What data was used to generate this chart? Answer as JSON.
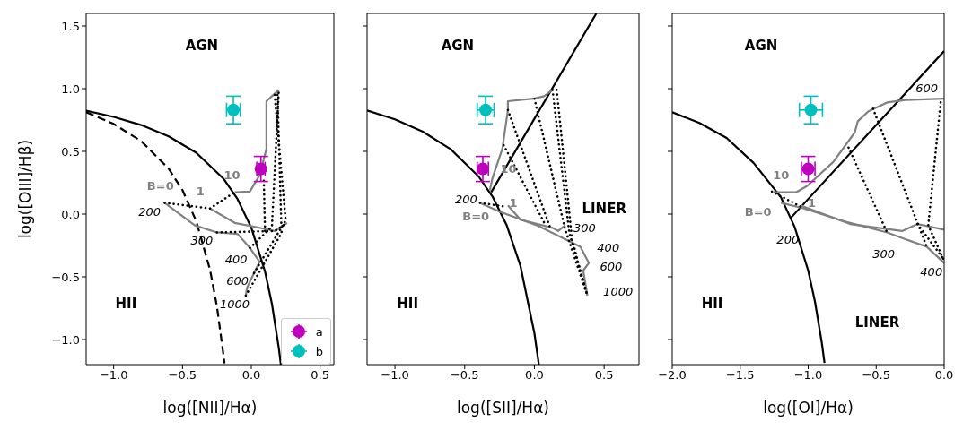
{
  "chart_data": [
    {
      "type": "line",
      "xlabel": "log([NII]/Hα)",
      "ylabel": "log([OIII]/Hβ)",
      "xlim": [
        -1.2,
        0.6
      ],
      "ylim": [
        -1.2,
        1.6
      ],
      "xticks": [
        {
          "value": -1,
          "label": "−1.0"
        },
        {
          "value": -0.5,
          "label": "−0.5"
        },
        {
          "value": 0,
          "label": "0.0"
        },
        {
          "value": 0.5,
          "label": "0.5"
        }
      ],
      "yticks": [
        {
          "value": -1,
          "label": "−1.0"
        },
        {
          "value": -0.5,
          "label": "−0.5"
        },
        {
          "value": 0,
          "label": "0.0"
        },
        {
          "value": 0.5,
          "label": "0.5"
        },
        {
          "value": 1,
          "label": "1.0"
        },
        {
          "value": 1.5,
          "label": "1.5"
        }
      ],
      "legend": "bottom right",
      "series": [
        {
          "color": "#000000",
          "line_style": "solid",
          "x": [
            -1.2,
            -1.0,
            -0.8,
            -0.6,
            -0.4,
            -0.2,
            -0.1,
            0.0,
            0.1,
            0.15,
            0.2,
            0.215
          ],
          "values": [
            0.825,
            0.775,
            0.71,
            0.62,
            0.489,
            0.28,
            0.12,
            -0.108,
            -0.459,
            -0.716,
            -1.069,
            -1.2
          ]
        },
        {
          "color": "#000000",
          "line_style": "dashed",
          "x": [
            -1.2,
            -1.0,
            -0.8,
            -0.6,
            -0.5,
            -0.4,
            -0.3,
            -0.25,
            -0.2,
            -0.195
          ],
          "values": [
            0.812,
            0.719,
            0.582,
            0.362,
            0.191,
            -0.056,
            -0.443,
            -0.733,
            -1.14,
            -1.19
          ]
        },
        {
          "color": "#808080",
          "line_style": "solid",
          "x": [
            -0.63,
            -0.41,
            -0.25,
            -0.1,
            -0.01,
            0.06,
            0.02,
            -0.03,
            -0.04
          ],
          "values": [
            0.09,
            -0.09,
            -0.146,
            -0.158,
            -0.27,
            -0.38,
            -0.47,
            -0.585,
            -0.65
          ]
        },
        {
          "color": "#808080",
          "line_style": "solid",
          "x": [
            -0.3,
            -0.12,
            0.02,
            0.17,
            0.26
          ],
          "values": [
            0.045,
            -0.07,
            -0.1,
            -0.135,
            -0.07
          ]
        },
        {
          "color": "#808080",
          "line_style": "solid",
          "x": [
            -0.12,
            -0.01,
            0.06,
            0.11,
            0.11,
            0.2
          ],
          "values": [
            0.175,
            0.18,
            0.31,
            0.52,
            0.9,
            0.99
          ]
        },
        {
          "color": "#000000",
          "line_style": "dotted",
          "x": [
            -0.63,
            -0.3,
            -0.12
          ],
          "values": [
            0.09,
            0.045,
            0.175
          ]
        },
        {
          "color": "#000000",
          "line_style": "dotted",
          "x": [
            -0.25,
            0.17,
            0.26
          ],
          "values": [
            -0.146,
            -0.135,
            -0.07
          ]
        },
        {
          "color": "#000000",
          "line_style": "dotted",
          "x": [
            0.1,
            0.09
          ],
          "values": [
            -0.135,
            0.3
          ]
        },
        {
          "color": "#000000",
          "line_style": "dotted",
          "x": [
            -0.01,
            0.15,
            0.2
          ],
          "values": [
            -0.27,
            -0.1,
            0.99
          ]
        },
        {
          "color": "#000000",
          "line_style": "dotted",
          "x": [
            0.02,
            0.25,
            0.17
          ],
          "values": [
            -0.47,
            -0.05,
            0.95
          ]
        },
        {
          "color": "#000000",
          "line_style": "dotted",
          "x": [
            -0.04,
            0.22,
            0.19
          ],
          "values": [
            -0.65,
            -0.15,
            0.97
          ]
        },
        {
          "type": "scatter",
          "name": "a",
          "color": "#bf00bf",
          "marker": "circle",
          "x": [
            0.07
          ],
          "values": [
            0.36
          ],
          "errors": [
            0.1
          ],
          "xerrors": [
            0.03
          ]
        },
        {
          "type": "scatter",
          "name": "b",
          "color": "#00bfbf",
          "marker": "circle",
          "x": [
            -0.13
          ],
          "values": [
            0.83
          ],
          "errors": [
            0.11
          ],
          "xerrors": [
            0.05
          ]
        }
      ],
      "annotations": [
        "AGN",
        "HII",
        "B=0",
        "1",
        "10",
        "200",
        "300",
        "400",
        "600",
        "1000"
      ]
    },
    {
      "type": "line",
      "xlabel": "log([SII]/Hα)",
      "xlim": [
        -1.2,
        0.75
      ],
      "ylim": [
        -1.2,
        1.6
      ],
      "tick_labels": "x",
      "xticks": [
        {
          "value": -1,
          "label": "−1.0"
        },
        {
          "value": -0.5,
          "label": "−0.5"
        },
        {
          "value": 0,
          "label": "0.0"
        },
        {
          "value": 0.5,
          "label": "0.5"
        }
      ],
      "yticks": [
        -1,
        -0.5,
        0,
        0.5,
        1,
        1.5
      ],
      "series": [
        {
          "color": "#000000",
          "line_style": "solid",
          "x": [
            -1.2,
            -1.0,
            -0.8,
            -0.6,
            -0.4,
            -0.3,
            -0.2,
            -0.1,
            0.0,
            0.032
          ],
          "values": [
            0.826,
            0.755,
            0.657,
            0.517,
            0.3,
            0.139,
            -0.085,
            -0.414,
            -0.95,
            -1.2
          ]
        },
        {
          "color": "#000000",
          "line_style": "solid",
          "x": [
            -0.31,
            0.444
          ],
          "values": [
            0.174,
            1.6
          ]
        },
        {
          "color": "#808080",
          "line_style": "solid",
          "x": [
            -0.32,
            -0.3,
            -0.23,
            -0.19,
            -0.19,
            -0.01,
            0.07,
            0.13
          ],
          "values": [
            0.19,
            0.29,
            0.52,
            0.83,
            0.9,
            0.92,
            0.94,
            0.99
          ]
        },
        {
          "color": "#808080",
          "line_style": "solid",
          "x": [
            -0.39,
            -0.25,
            0.02,
            0.22,
            0.33,
            0.39,
            0.35,
            0.38
          ],
          "values": [
            0.09,
            0.02,
            -0.09,
            -0.2,
            -0.26,
            -0.39,
            -0.45,
            -0.65
          ]
        },
        {
          "color": "#808080",
          "line_style": "solid",
          "x": [
            -0.19,
            -0.1,
            0.13,
            0.17,
            0.22
          ],
          "values": [
            0.07,
            -0.045,
            -0.11,
            -0.135,
            -0.09
          ]
        },
        {
          "color": "#000000",
          "line_style": "dotted",
          "x": [
            -0.39,
            -0.21
          ],
          "values": [
            0.09,
            0.06
          ]
        },
        {
          "color": "#000000",
          "line_style": "dotted",
          "x": [
            -0.19,
            0.12
          ],
          "values": [
            0.83,
            -0.13
          ]
        },
        {
          "color": "#000000",
          "line_style": "dotted",
          "x": [
            -0.22,
            0.08
          ],
          "values": [
            0.55,
            -0.09
          ]
        },
        {
          "color": "#000000",
          "line_style": "dotted",
          "x": [
            0.0,
            0.22,
            0.38
          ],
          "values": [
            0.92,
            -0.12,
            -0.65
          ]
        },
        {
          "color": "#000000",
          "line_style": "dotted",
          "x": [
            0.13,
            0.25,
            0.38
          ],
          "values": [
            0.99,
            -0.15,
            -0.65
          ]
        },
        {
          "color": "#000000",
          "line_style": "dotted",
          "x": [
            0.16,
            0.27,
            0.37
          ],
          "values": [
            0.99,
            -0.2,
            -0.62
          ]
        },
        {
          "type": "scatter",
          "color": "#bf00bf",
          "marker": "circle",
          "x": [
            -0.37
          ],
          "values": [
            0.36
          ],
          "errors": [
            0.1
          ],
          "xerrors": [
            0.04
          ]
        },
        {
          "type": "scatter",
          "color": "#00bfbf",
          "marker": "circle",
          "x": [
            -0.35
          ],
          "values": [
            0.83
          ],
          "errors": [
            0.11
          ],
          "xerrors": [
            0.06
          ]
        }
      ],
      "annotations": [
        "AGN",
        "HII",
        "LINER",
        "B=0",
        "1",
        "10",
        "200",
        "300",
        "400",
        "600",
        "1000"
      ]
    },
    {
      "type": "line",
      "xlabel": "log([OI]/Hα)",
      "xlim": [
        -2.0,
        0.0
      ],
      "ylim": [
        -1.2,
        1.6
      ],
      "tick_labels": "x",
      "xticks": [
        {
          "value": -2,
          "label": "−2.0"
        },
        {
          "value": -1.5,
          "label": "−1.5"
        },
        {
          "value": -1,
          "label": "−1.0"
        },
        {
          "value": -0.5,
          "label": "−0.5"
        },
        {
          "value": 0,
          "label": "0.0"
        }
      ],
      "yticks": [
        -1,
        -0.5,
        0,
        0.5,
        1,
        1.5
      ],
      "series": [
        {
          "color": "#000000",
          "line_style": "solid",
          "x": [
            -2.0,
            -1.8,
            -1.6,
            -1.4,
            -1.2,
            -1.1,
            -1.0,
            -0.95,
            -0.9,
            -0.88
          ],
          "values": [
            0.812,
            0.727,
            0.607,
            0.406,
            0.133,
            -0.101,
            -0.45,
            -0.698,
            -1.025,
            -1.187
          ]
        },
        {
          "color": "#000000",
          "line_style": "solid",
          "x": [
            -1.13,
            0.0
          ],
          "values": [
            -0.033,
            1.3
          ]
        },
        {
          "color": "#808080",
          "line_style": "solid",
          "x": [
            -1.256,
            -1.087,
            -1.007,
            -0.816,
            -0.658,
            -0.635,
            -0.557,
            -0.42,
            -0.286,
            0.0
          ],
          "values": [
            0.175,
            0.175,
            0.225,
            0.415,
            0.65,
            0.74,
            0.82,
            0.89,
            0.91,
            0.92
          ]
        },
        {
          "color": "#808080",
          "line_style": "solid",
          "x": [
            -1.2,
            -1.03,
            -0.737,
            -0.42,
            -0.286,
            -0.128,
            0.0
          ],
          "values": [
            0.09,
            0.045,
            -0.057,
            -0.146,
            -0.2,
            -0.26,
            -0.39
          ]
        },
        {
          "color": "#808080",
          "line_style": "solid",
          "x": [
            -1.053,
            -0.692,
            -0.309,
            -0.196,
            0.0
          ],
          "values": [
            0.067,
            -0.079,
            -0.135,
            -0.079,
            -0.124
          ]
        },
        {
          "color": "#000000",
          "line_style": "dotted",
          "x": [
            -1.267,
            -1.03
          ],
          "values": [
            0.18,
            0.045
          ]
        },
        {
          "color": "#000000",
          "line_style": "dotted",
          "x": [
            -0.703,
            -0.42
          ],
          "values": [
            0.53,
            -0.146
          ]
        },
        {
          "color": "#000000",
          "line_style": "dotted",
          "x": [
            -0.523,
            -0.128
          ],
          "values": [
            0.84,
            -0.26
          ]
        },
        {
          "color": "#000000",
          "line_style": "dotted",
          "x": [
            -0.026,
            -0.117,
            -0.005
          ],
          "values": [
            0.89,
            -0.09,
            -0.36
          ]
        },
        {
          "color": "#000000",
          "line_style": "dotted",
          "x": [
            -0.196,
            -0.01
          ],
          "values": [
            -0.079,
            -0.35
          ]
        },
        {
          "type": "scatter",
          "color": "#bf00bf",
          "marker": "circle",
          "x": [
            -1.0
          ],
          "values": [
            0.36
          ],
          "errors": [
            0.1
          ],
          "xerrors": [
            0.05
          ]
        },
        {
          "type": "scatter",
          "color": "#00bfbf",
          "marker": "circle",
          "x": [
            -0.98
          ],
          "values": [
            0.83
          ],
          "errors": [
            0.11
          ],
          "xerrors": [
            0.085
          ]
        }
      ],
      "annotations": [
        "AGN",
        "HII",
        "LINER",
        "B=0",
        "1",
        "10",
        "600",
        "200",
        "300",
        "400"
      ]
    }
  ]
}
